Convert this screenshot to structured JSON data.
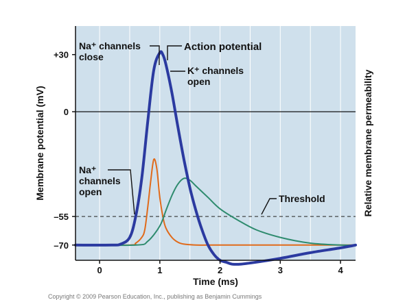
{
  "chart_data": {
    "type": "line",
    "xlabel": "Time (ms)",
    "ylabel": "Membrane potential (mV)",
    "ylabel_right": "Relative membrane permeability",
    "xlim": [
      -0.4,
      4.25
    ],
    "ylim": [
      -78,
      45
    ],
    "x_ticks": [
      0,
      1,
      2,
      3,
      4
    ],
    "y_ticks": [
      {
        "value": 30,
        "label": "+30"
      },
      {
        "value": 0,
        "label": "0"
      },
      {
        "value": -55,
        "label": "–55"
      },
      {
        "value": -70,
        "label": "–70"
      }
    ],
    "grid": true,
    "colors": {
      "background": "#cfe0ec",
      "grid": "#ffffff",
      "action_potential": "#2b3aa0",
      "na_permeability": "#e06a1a",
      "k_permeability": "#2e8b6e",
      "threshold": "#333333"
    },
    "threshold": -55,
    "series": [
      {
        "name": "Action potential",
        "x": [
          -0.4,
          0.2,
          0.35,
          0.5,
          0.6,
          0.7,
          0.8,
          0.9,
          1.0,
          1.05,
          1.1,
          1.2,
          1.3,
          1.4,
          1.5,
          1.6,
          1.7,
          1.8,
          1.9,
          2.0,
          2.1,
          2.2,
          2.35,
          2.6,
          3.0,
          3.5,
          4.0,
          4.25
        ],
        "y": [
          -70,
          -70,
          -69.5,
          -66,
          -55,
          -35,
          -5,
          22,
          31,
          30,
          25,
          10,
          -8,
          -25,
          -40,
          -52,
          -62,
          -70,
          -75,
          -78,
          -79,
          -80,
          -80,
          -79,
          -77,
          -74,
          -71.5,
          -70
        ]
      },
      {
        "name": "Na⁺ permeability",
        "x": [
          -0.4,
          0.5,
          0.6,
          0.7,
          0.75,
          0.8,
          0.85,
          0.9,
          0.95,
          1.0,
          1.05,
          1.1,
          1.2,
          1.3,
          1.4,
          1.6,
          1.8,
          2.2,
          4.25
        ],
        "y": [
          -70,
          -70,
          -69,
          -66,
          -62,
          -50,
          -36,
          -25,
          -30,
          -45,
          -55,
          -61,
          -66,
          -68.5,
          -69.5,
          -70,
          -70,
          -70,
          -70
        ]
      },
      {
        "name": "K⁺ permeability",
        "x": [
          -0.4,
          0.6,
          0.8,
          1.0,
          1.1,
          1.2,
          1.3,
          1.4,
          1.5,
          1.6,
          1.8,
          2.0,
          2.3,
          2.6,
          3.0,
          3.5,
          4.0,
          4.25
        ],
        "y": [
          -70,
          -70,
          -68,
          -60,
          -52,
          -44,
          -38,
          -35,
          -36,
          -39,
          -45,
          -51,
          -57,
          -62,
          -66,
          -69,
          -70,
          -70
        ]
      }
    ],
    "annotations": [
      {
        "id": "ap",
        "lines": [
          "Action potential"
        ]
      },
      {
        "id": "na_close",
        "lines": [
          "Na⁺ channels",
          "close"
        ]
      },
      {
        "id": "k_open",
        "lines": [
          "K⁺ channels",
          "open"
        ]
      },
      {
        "id": "na_open",
        "lines": [
          "Na⁺",
          "channels",
          "open"
        ]
      },
      {
        "id": "threshold",
        "lines": [
          "Threshold"
        ]
      }
    ]
  },
  "copyright_text": "Copyright © 2009 Pearson Education, Inc., publishing as Benjamin Cummings"
}
